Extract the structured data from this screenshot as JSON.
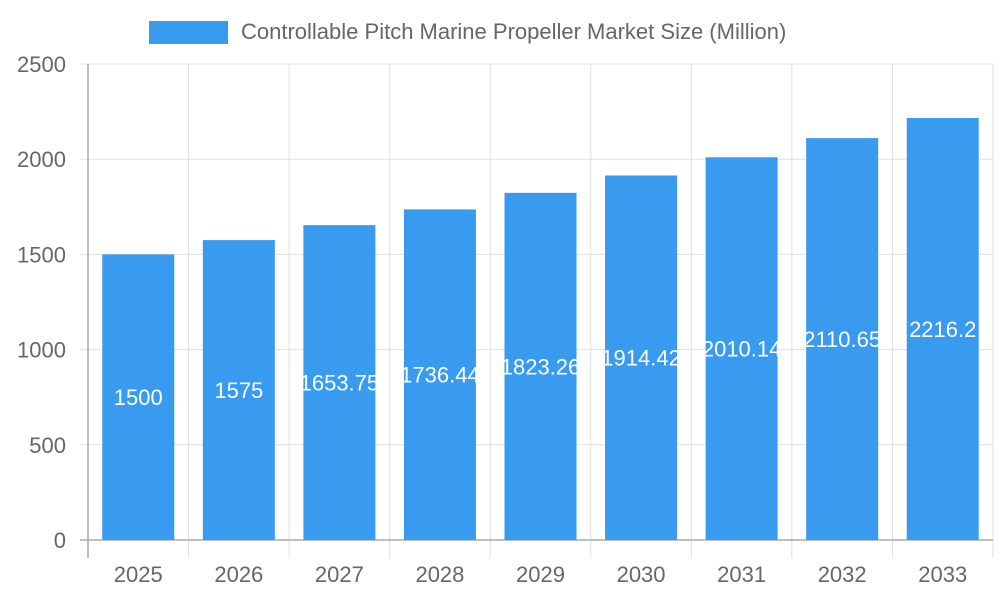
{
  "chart_data": {
    "type": "bar",
    "title": "",
    "xlabel": "",
    "ylabel": "",
    "categories": [
      "2025",
      "2026",
      "2027",
      "2028",
      "2029",
      "2030",
      "2031",
      "2032",
      "2033"
    ],
    "series": [
      {
        "name": "Controllable Pitch Marine Propeller Market Size (Million)",
        "values": [
          1500,
          1575,
          1653.75,
          1736.44,
          1823.26,
          1914.42,
          2010.14,
          2110.65,
          2216.2
        ],
        "color": "#389bef"
      }
    ],
    "data_labels": [
      "1500",
      "1575",
      "1653.75",
      "1736.44",
      "1823.26",
      "1914.42",
      "2010.14",
      "2110.65",
      "2216.2"
    ],
    "ylim": [
      0,
      2500
    ],
    "yticks": [
      "0",
      "500",
      "1000",
      "1500",
      "2000",
      "2500"
    ],
    "grid": true,
    "legend_position": "top"
  }
}
